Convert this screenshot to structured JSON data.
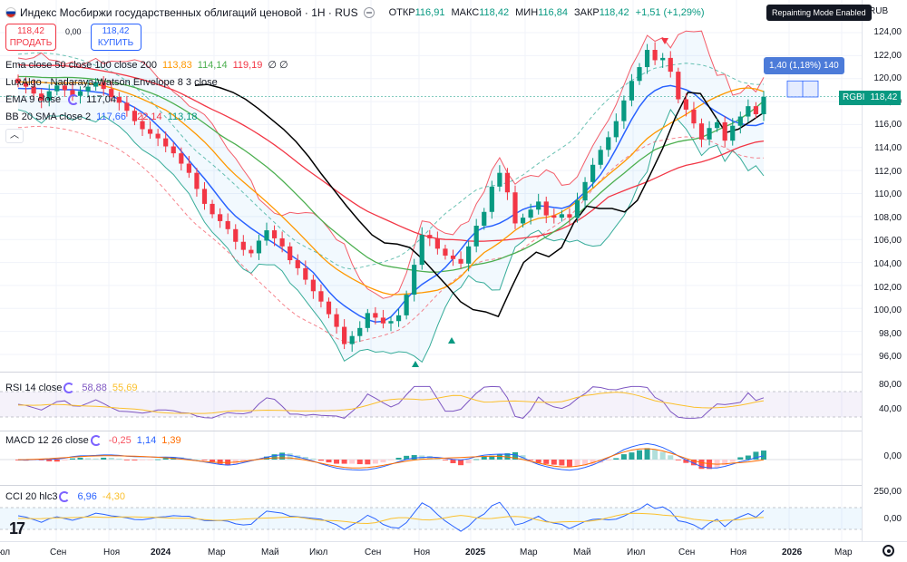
{
  "header": {
    "title": "Индекс Мосбиржи государственных облигаций ценовой · 1Н · RUS",
    "ohlc": [
      {
        "k": "ОТКР",
        "v": "116,91"
      },
      {
        "k": "МАКС",
        "v": "118,42"
      },
      {
        "k": "МИН",
        "v": "116,84"
      },
      {
        "k": "ЗАКР",
        "v": "118,42"
      },
      {
        "k": "",
        "v": "+1,51 (+1,29%)"
      }
    ],
    "repaint_badge": "Repainting Mode Enabled",
    "currency": "RUB"
  },
  "trade": {
    "sell_price": "118,42",
    "sell_label": "ПРОДАТЬ",
    "spread": "0,00",
    "buy_price": "118,42",
    "buy_label": "КУПИТЬ"
  },
  "indicators": {
    "ema_triple": {
      "name": "Ema close 50 close 100 close 200",
      "v1": "113,83",
      "v2": "114,14",
      "v3": "119,19",
      "tail": "∅ ∅"
    },
    "nw": {
      "name": "LuxAlgo - Nadaraya-Watson Envelope 8 3 close"
    },
    "ema9": {
      "name": "EMA 9 close",
      "value": "117,04"
    },
    "bb": {
      "name": "BB 20 SMA close 2",
      "v1": "117,66",
      "v2": "122,14",
      "v3": "113,18"
    },
    "rsi": {
      "name": "RSI 14 close",
      "v1": "58,88",
      "v2": "55,69"
    },
    "macd": {
      "name": "MACD 12 26 close",
      "v1": "-0,25",
      "v2": "1,14",
      "v3": "1,39"
    },
    "cci": {
      "name": "CCI 20 hlc3",
      "v1": "6,96",
      "v2": "-4,30"
    }
  },
  "price_axis": [
    "124,00",
    "122,00",
    "120,00",
    "118,00",
    "116,00",
    "114,00",
    "112,00",
    "110,00",
    "108,00",
    "106,00",
    "104,00",
    "102,00",
    "100,00",
    "98,00",
    "96,00"
  ],
  "rsi_axis": [
    "80,00",
    "40,00"
  ],
  "macd_axis": [
    "0,00"
  ],
  "cci_axis": [
    "250,00",
    "0,00"
  ],
  "time_axis": [
    {
      "label": "юл",
      "bold": false
    },
    {
      "label": "Сен",
      "bold": false
    },
    {
      "label": "Ноя",
      "bold": false
    },
    {
      "label": "2024",
      "bold": true
    },
    {
      "label": "Мар",
      "bold": false
    },
    {
      "label": "Май",
      "bold": false
    },
    {
      "label": "Июл",
      "bold": false
    },
    {
      "label": "Сен",
      "bold": false
    },
    {
      "label": "Ноя",
      "bold": false
    },
    {
      "label": "2025",
      "bold": true
    },
    {
      "label": "Мар",
      "bold": false
    },
    {
      "label": "Май",
      "bold": false
    },
    {
      "label": "Июл",
      "bold": false
    },
    {
      "label": "Сен",
      "bold": false
    },
    {
      "label": "Ноя",
      "bold": false
    },
    {
      "label": "2026",
      "bold": true
    },
    {
      "label": "Мар",
      "bold": false
    }
  ],
  "last_price": {
    "symbol": "RGBI",
    "value": "118,42"
  },
  "measure": "1,40 (1,18%) 140",
  "logo": "17",
  "colors": {
    "up": "#089981",
    "down": "#f23645",
    "ema50": "#2962ff",
    "ema100": "#ff9800",
    "ema200": "#4caf50",
    "ema9": "#000000",
    "bb_upper": "#f23645",
    "bb_lower": "#089981"
  },
  "chart_data": {
    "type": "candlestick",
    "symbol": "RGBI",
    "title": "Индекс Мосбиржи государственных облигаций ценовой",
    "timeframe": "1W",
    "ylim": [
      95,
      125
    ],
    "x_labels": [
      "Сен",
      "Ноя",
      "2024",
      "Мар",
      "Май",
      "Июл",
      "Сен",
      "Ноя",
      "2025",
      "Мар",
      "Май",
      "Июл",
      "Сен",
      "Ноя"
    ],
    "close_path": [
      119.6,
      119.3,
      118.7,
      118.1,
      118.9,
      119.4,
      119.0,
      118.5,
      118.9,
      119.3,
      119.7,
      119.1,
      118.4,
      117.9,
      117.2,
      116.3,
      115.6,
      115.2,
      114.8,
      114.1,
      113.5,
      112.6,
      111.8,
      110.4,
      109.1,
      108.2,
      107.6,
      106.9,
      105.8,
      105.1,
      104.8,
      105.9,
      106.8,
      106.1,
      105.4,
      104.2,
      103.5,
      102.5,
      101.5,
      100.6,
      99.5,
      98.4,
      96.9,
      97.6,
      98.3,
      99.6,
      99.2,
      98.7,
      98.9,
      99.4,
      101.2,
      103.8,
      106.4,
      106.1,
      105.2,
      104.6,
      104.3,
      103.9,
      105.4,
      107.2,
      108.4,
      110.6,
      111.8,
      110.1,
      107.4,
      107.9,
      108.6,
      109.3,
      108.1,
      107.9,
      108.2,
      107.9,
      109.4,
      111.0,
      112.5,
      113.8,
      114.9,
      116.3,
      118.1,
      119.8,
      121.0,
      122.5,
      121.6,
      121.8,
      120.6,
      118.2,
      117.3,
      116.1,
      114.7,
      115.7,
      116.2,
      114.6,
      115.9,
      116.7,
      117.6,
      116.9,
      118.42
    ],
    "ema9": [
      119.4,
      119.5,
      119.2,
      118.8,
      118.2,
      117.4,
      116.5,
      115.6,
      114.5,
      113.2,
      111.7,
      110.3,
      108.9,
      107.6,
      106.4,
      105.7,
      105.6,
      105.3,
      104.3,
      103.1,
      101.9,
      100.6,
      99.9,
      99.7,
      99.3,
      101.7,
      104.0,
      104.9,
      104.5,
      105.3,
      107.5,
      108.9,
      108.7,
      108.7,
      108.4,
      109.4,
      111.6,
      113.9,
      116.6,
      118.8,
      118.7,
      117.0,
      115.3,
      115.6,
      116.3,
      117.04
    ],
    "bb": {
      "basis": "117,66",
      "upper": "122,14",
      "lower": "113,18"
    },
    "ema_50_100_200": [
      "113,83",
      "114,14",
      "119,19"
    ],
    "rsi_last": [
      58.88,
      55.69
    ],
    "macd_last": [
      -0.25,
      1.14,
      1.39
    ],
    "cci_last": [
      6.96,
      -4.3
    ]
  }
}
